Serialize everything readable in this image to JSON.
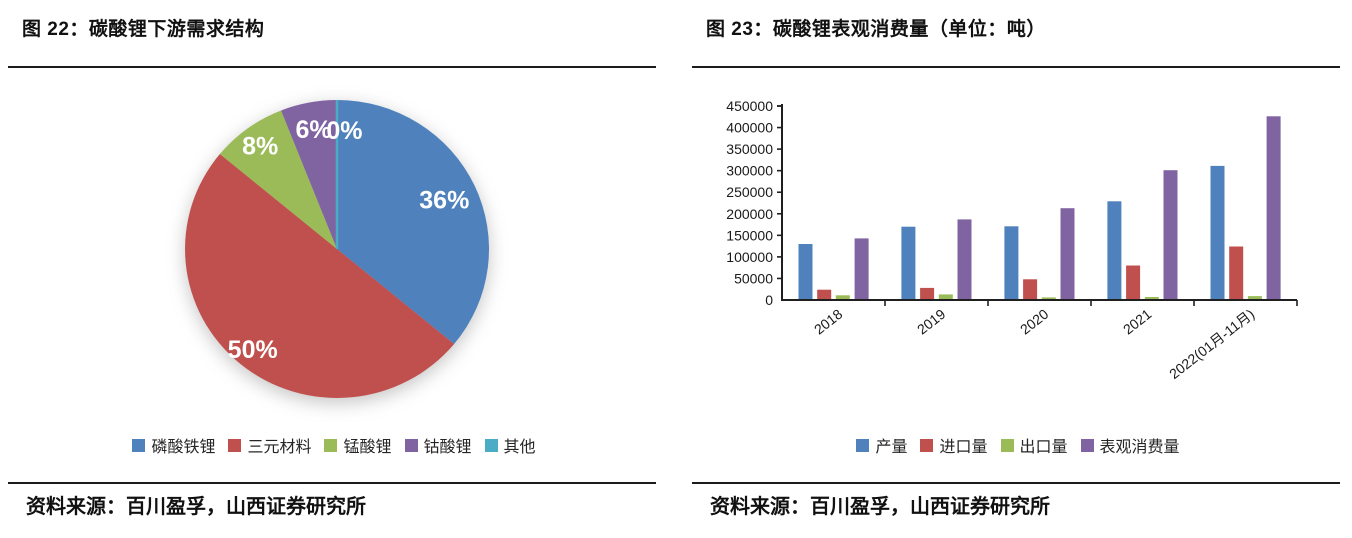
{
  "left_panel": {
    "title": "图 22：碳酸锂下游需求结构",
    "source": "资料来源：百川盈孚，山西证券研究所"
  },
  "right_panel": {
    "title": "图 23：碳酸锂表观消费量（单位：吨）",
    "source": "资料来源：百川盈孚，山西证券研究所"
  },
  "chart_data": [
    {
      "type": "pie",
      "title": "碳酸锂下游需求结构",
      "labels": [
        "磷酸铁锂",
        "三元材料",
        "锰酸锂",
        "钴酸锂",
        "其他"
      ],
      "values": [
        36,
        50,
        8,
        6,
        0
      ],
      "data_labels": [
        "36%",
        "50%",
        "8%",
        "6%",
        "0%"
      ],
      "colors": [
        "#4F81BD",
        "#C0504D",
        "#9BBB59",
        "#8064A2",
        "#4BACC6"
      ],
      "start_angle": "top",
      "direction": "clockwise",
      "legend_position": "bottom"
    },
    {
      "type": "bar",
      "title": "碳酸锂表观消费量（单位：吨）",
      "categories": [
        "2018",
        "2019",
        "2020",
        "2021",
        "2022(01月-11月)"
      ],
      "series": [
        {
          "name": "产量",
          "color": "#4F81BD",
          "values": [
            130000,
            170000,
            171000,
            229000,
            311000
          ]
        },
        {
          "name": "进口量",
          "color": "#C0504D",
          "values": [
            24000,
            28000,
            48000,
            80000,
            124000
          ]
        },
        {
          "name": "出口量",
          "color": "#9BBB59",
          "values": [
            11000,
            13000,
            6000,
            7000,
            9000
          ]
        },
        {
          "name": "表观消费量",
          "color": "#8064A2",
          "values": [
            143000,
            187000,
            213000,
            301000,
            426000
          ]
        }
      ],
      "ylim": [
        0,
        450000
      ],
      "ytick_step": 50000,
      "ytick_labels": [
        "0",
        "50000",
        "100000",
        "150000",
        "200000",
        "250000",
        "300000",
        "350000",
        "400000",
        "450000"
      ],
      "grid": false,
      "legend_position": "bottom"
    }
  ],
  "text_color": "#111111",
  "axis_color": "#1f1f1f"
}
